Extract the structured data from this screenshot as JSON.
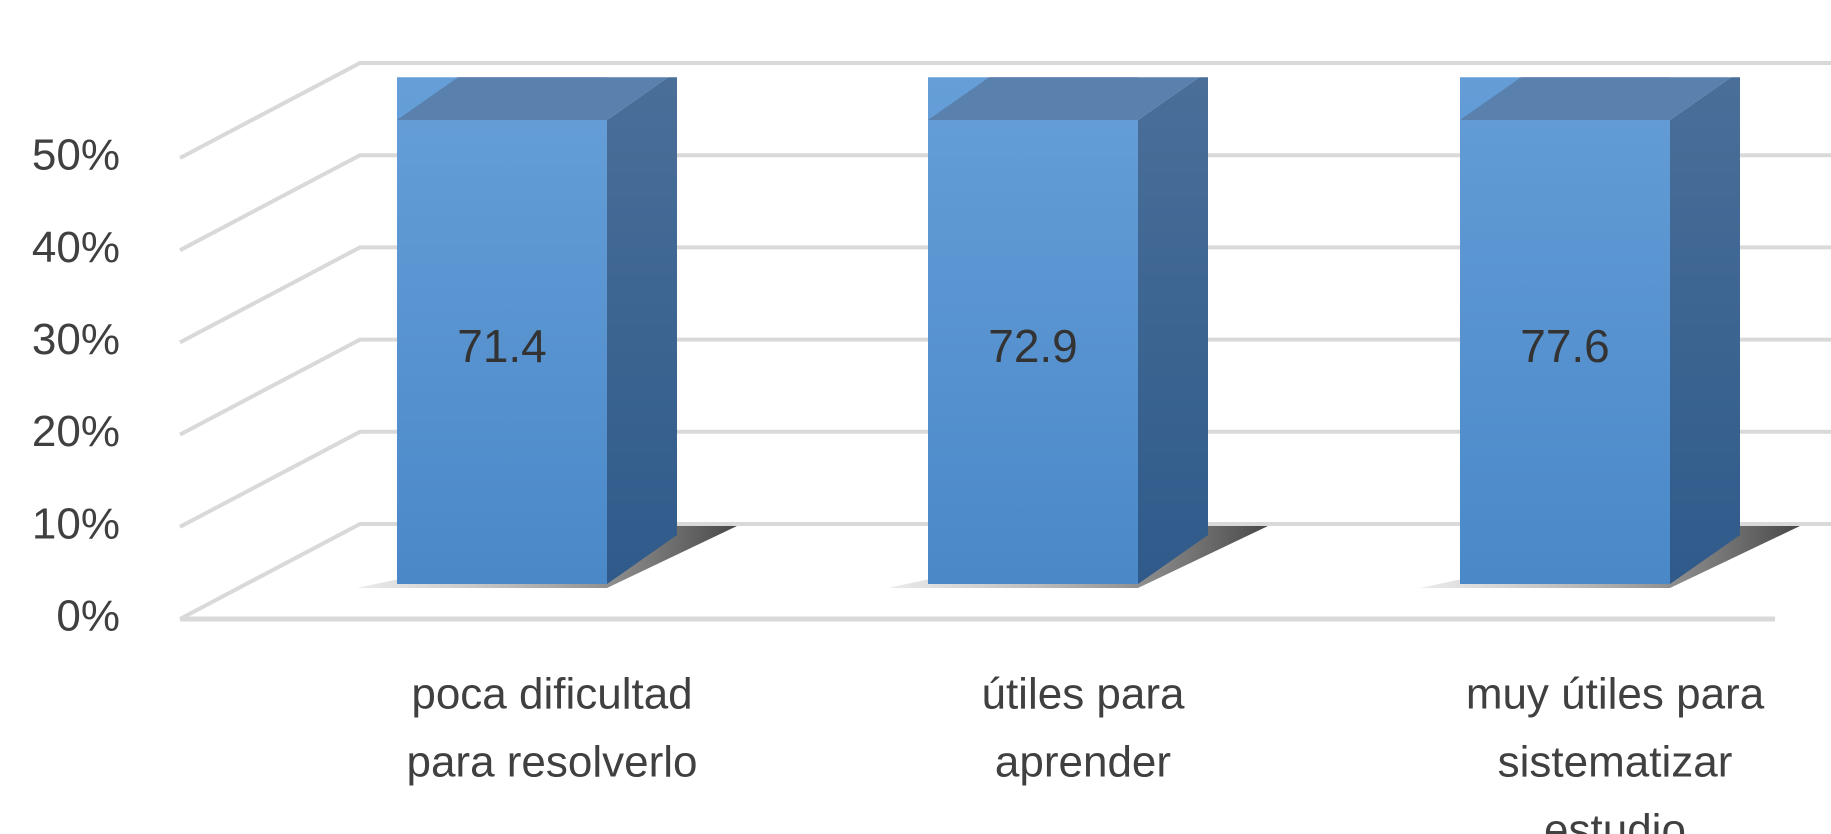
{
  "chart_data": {
    "type": "bar3d",
    "categories": [
      [
        "poca dificultad",
        "para resolverlo"
      ],
      [
        "útiles para",
        "aprender"
      ],
      [
        "muy útiles para",
        "sistematizar",
        "estudio"
      ]
    ],
    "values": [
      71.4,
      72.9,
      77.6
    ],
    "color": "#5b9bd5",
    "ylim": [
      0,
      50
    ],
    "yticks": [
      {
        "value": 0,
        "label": "0%"
      },
      {
        "value": 10,
        "label": "10%"
      },
      {
        "value": 20,
        "label": "20%"
      },
      {
        "value": 30,
        "label": "30%"
      },
      {
        "value": 40,
        "label": "40%"
      },
      {
        "value": 50,
        "label": "50%"
      }
    ],
    "grid": true
  }
}
